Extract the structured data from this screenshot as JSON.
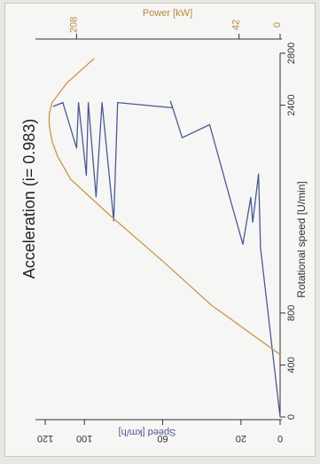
{
  "chart_data": {
    "type": "line",
    "orientation_note": "figure printed rotated 90 degrees clockwise",
    "title": "Acceleration (i= 0.983)",
    "xlabel": "Rotational speed [U/min]",
    "ylabel_left": "Speed [km/h]",
    "ylabel_right": "Power [kW]",
    "x_ticks": [
      "0",
      "400",
      "800",
      "2400",
      "2800"
    ],
    "x_ticks_values": [
      0,
      400,
      800,
      2400,
      2800
    ],
    "y_left_ticks": [
      "0",
      "20",
      "60",
      "100",
      "120"
    ],
    "y_left_ticks_values": [
      0,
      20,
      60,
      100,
      120
    ],
    "y_right_ticks": [
      "0",
      "42",
      "208"
    ],
    "y_right_ticks_values": [
      0,
      42,
      208
    ],
    "xlim": [
      0,
      2800
    ],
    "ylim_left": [
      0,
      125
    ],
    "ylim_right": [
      0,
      250
    ],
    "colors": {
      "speed": "#4a5a92",
      "power": "#c8964e",
      "axis": "#333333",
      "power_text": "#b8893f"
    },
    "series": [
      {
        "axis": "speed",
        "color": "#4a5a92",
        "x": [
          0,
          1300,
          1870,
          1500,
          1690,
          1330,
          1650,
          2250,
          2150,
          2430,
          2380,
          2420,
          1510,
          2420,
          1695,
          2420,
          1860,
          2420,
          2070,
          2420,
          2390
        ],
        "y": [
          0,
          10,
          11,
          14,
          15,
          19,
          25,
          36,
          50,
          56,
          55,
          83,
          85,
          91,
          94,
          98,
          99,
          103,
          104,
          111,
          116
        ]
      },
      {
        "axis": "power",
        "color": "#c8964e",
        "x": [
          480,
          860,
          1200,
          1560,
          1830,
          2000,
          2120,
          2250,
          2330,
          2420,
          2570,
          2760
        ],
        "y": [
          0,
          70,
          120,
          175,
          214,
          227,
          233,
          236,
          236,
          233,
          218,
          190
        ]
      }
    ]
  }
}
